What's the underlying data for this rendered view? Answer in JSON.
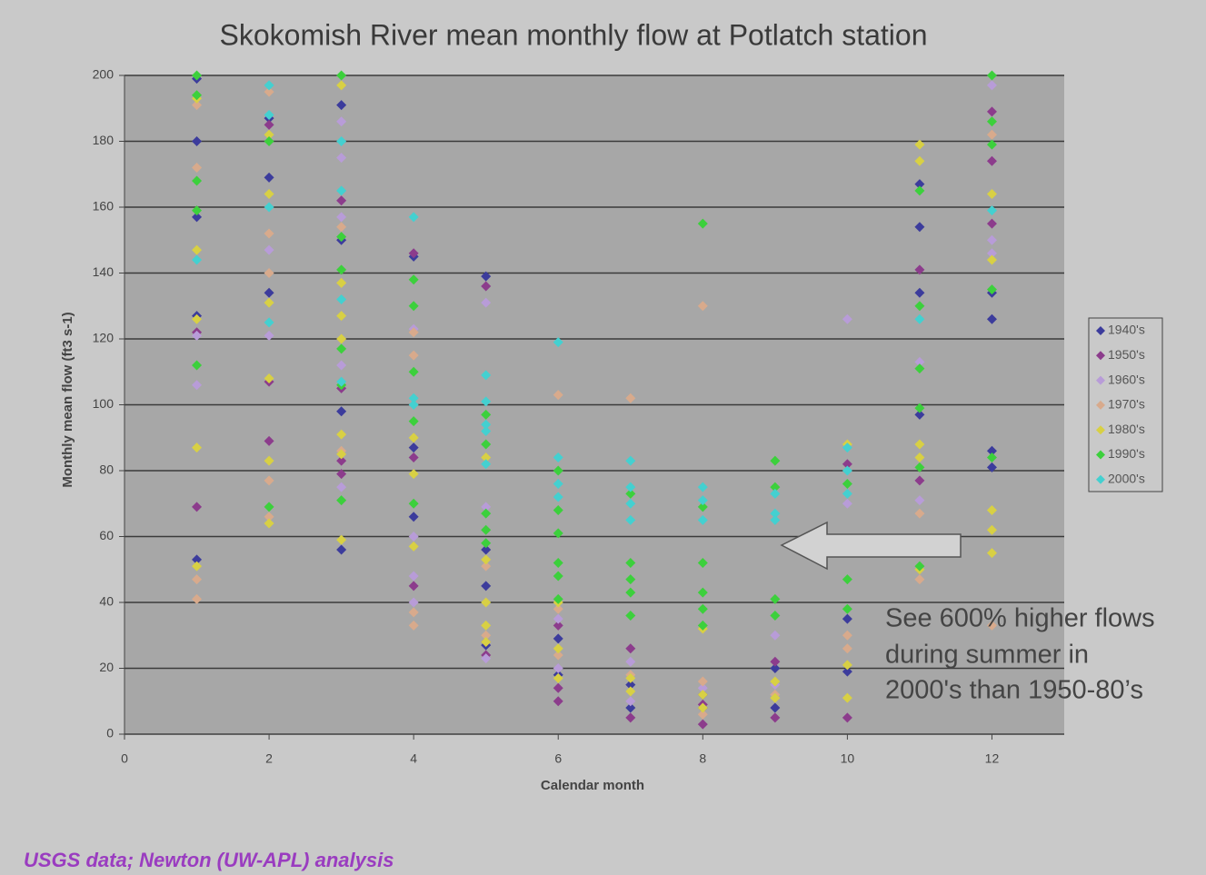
{
  "chart_data": {
    "type": "scatter",
    "title": "Skokomish River mean monthly flow at Potlatch station",
    "x_label": "Calendar month",
    "y_label": "Monthly mean flow (ft3 s-1)",
    "xlim": [
      0,
      13
    ],
    "xticks": [
      0,
      2,
      4,
      6,
      8,
      10,
      12
    ],
    "ylim": [
      0,
      200
    ],
    "yticks": [
      0,
      20,
      40,
      60,
      80,
      100,
      120,
      140,
      160,
      180,
      200
    ],
    "grid": true,
    "legend": "right",
    "annotation": [
      "See 600% higher flows",
      "during summer in",
      "2000's than 1950-80’s"
    ],
    "source": "USGS data; Newton (UW-APL) analysis",
    "series": [
      {
        "name": "1940's",
        "color": "#3c3c9c",
        "x": [
          1,
          1,
          1,
          1,
          1,
          2,
          2,
          2,
          3,
          3,
          3,
          3,
          4,
          4,
          4,
          5,
          5,
          5,
          5,
          6,
          6,
          7,
          7,
          8,
          8,
          9,
          9,
          10,
          10,
          11,
          11,
          11,
          11,
          12,
          12,
          12,
          12
        ],
        "values": [
          199,
          180,
          157,
          127,
          53,
          187,
          169,
          134,
          191,
          150,
          98,
          56,
          145,
          87,
          66,
          139,
          56,
          45,
          27,
          29,
          18,
          8,
          15,
          8,
          12,
          20,
          8,
          35,
          19,
          167,
          154,
          134,
          97,
          134,
          126,
          86,
          81
        ]
      },
      {
        "name": "1950's",
        "color": "#8c3c8c",
        "x": [
          1,
          1,
          2,
          2,
          2,
          3,
          3,
          3,
          3,
          4,
          4,
          4,
          5,
          5,
          5,
          6,
          6,
          6,
          7,
          7,
          8,
          8,
          9,
          9,
          10,
          10,
          11,
          11,
          12,
          12,
          12
        ],
        "values": [
          122,
          69,
          185,
          107,
          89,
          162,
          105,
          83,
          79,
          146,
          84,
          45,
          136,
          28,
          24,
          33,
          14,
          10,
          26,
          5,
          3,
          9,
          22,
          5,
          82,
          5,
          141,
          77,
          189,
          174,
          155
        ]
      },
      {
        "name": "1960's",
        "color": "#b89cd8",
        "x": [
          1,
          1,
          2,
          2,
          3,
          3,
          3,
          3,
          3,
          4,
          4,
          4,
          4,
          5,
          5,
          5,
          6,
          6,
          7,
          7,
          8,
          9,
          9,
          10,
          10,
          11,
          11,
          12,
          12,
          12
        ],
        "values": [
          121,
          106,
          147,
          121,
          186,
          175,
          157,
          112,
          75,
          123,
          60,
          48,
          40,
          131,
          69,
          23,
          35,
          20,
          22,
          10,
          14,
          30,
          15,
          126,
          70,
          113,
          71,
          197,
          150,
          146
        ]
      },
      {
        "name": "1970's",
        "color": "#d8aa8c",
        "x": [
          1,
          1,
          1,
          1,
          2,
          2,
          2,
          2,
          2,
          3,
          3,
          3,
          4,
          4,
          4,
          4,
          5,
          5,
          6,
          6,
          6,
          7,
          7,
          8,
          8,
          8,
          9,
          10,
          10,
          11,
          11,
          12,
          12
        ],
        "values": [
          191,
          172,
          47,
          41,
          195,
          152,
          140,
          77,
          66,
          154,
          137,
          86,
          122,
          115,
          37,
          33,
          51,
          30,
          103,
          38,
          24,
          102,
          18,
          130,
          16,
          6,
          12,
          30,
          26,
          67,
          47,
          182,
          33
        ]
      },
      {
        "name": "1980's",
        "color": "#d8d044",
        "x": [
          1,
          1,
          1,
          1,
          1,
          2,
          2,
          2,
          2,
          2,
          2,
          3,
          3,
          3,
          3,
          3,
          3,
          3,
          4,
          4,
          4,
          5,
          5,
          5,
          5,
          5,
          6,
          6,
          6,
          7,
          7,
          8,
          8,
          8,
          9,
          9,
          10,
          10,
          10,
          11,
          11,
          11,
          11,
          11,
          12,
          12,
          12,
          12,
          12
        ],
        "values": [
          193,
          147,
          126,
          87,
          51,
          182,
          164,
          131,
          108,
          83,
          64,
          197,
          137,
          127,
          120,
          91,
          85,
          59,
          90,
          79,
          57,
          84,
          53,
          40,
          33,
          28,
          40,
          26,
          17,
          17,
          13,
          32,
          12,
          8,
          16,
          11,
          88,
          21,
          11,
          179,
          174,
          88,
          84,
          50,
          164,
          144,
          68,
          62,
          55
        ]
      },
      {
        "name": "1990's",
        "color": "#3cd03c",
        "x": [
          1,
          1,
          1,
          1,
          1,
          2,
          2,
          3,
          3,
          3,
          3,
          3,
          3,
          4,
          4,
          4,
          4,
          4,
          5,
          5,
          5,
          5,
          5,
          6,
          6,
          6,
          6,
          6,
          6,
          7,
          7,
          7,
          7,
          7,
          8,
          8,
          8,
          8,
          8,
          8,
          9,
          9,
          9,
          9,
          10,
          10,
          10,
          11,
          11,
          11,
          11,
          11,
          11,
          12,
          12,
          12,
          12,
          12
        ],
        "values": [
          200,
          194,
          168,
          159,
          112,
          180,
          69,
          200,
          151,
          141,
          117,
          106,
          71,
          138,
          130,
          110,
          95,
          70,
          97,
          88,
          67,
          62,
          58,
          80,
          68,
          61,
          52,
          48,
          41,
          73,
          52,
          47,
          43,
          36,
          155,
          69,
          52,
          43,
          38,
          33,
          83,
          75,
          41,
          36,
          76,
          47,
          38,
          165,
          130,
          111,
          99,
          81,
          51,
          200,
          186,
          179,
          135,
          84
        ]
      },
      {
        "name": "2000's",
        "color": "#44d0d0",
        "x": [
          1,
          2,
          2,
          2,
          2,
          3,
          3,
          3,
          3,
          4,
          4,
          4,
          5,
          5,
          5,
          5,
          5,
          6,
          6,
          6,
          6,
          7,
          7,
          7,
          7,
          8,
          8,
          8,
          9,
          9,
          9,
          10,
          10,
          10,
          11,
          12
        ],
        "values": [
          144,
          197,
          188,
          160,
          125,
          180,
          165,
          132,
          107,
          157,
          102,
          100,
          109,
          101,
          94,
          92,
          82,
          119,
          84,
          76,
          72,
          83,
          75,
          70,
          65,
          75,
          71,
          65,
          73,
          67,
          65,
          87,
          80,
          73,
          126,
          159
        ]
      }
    ]
  }
}
